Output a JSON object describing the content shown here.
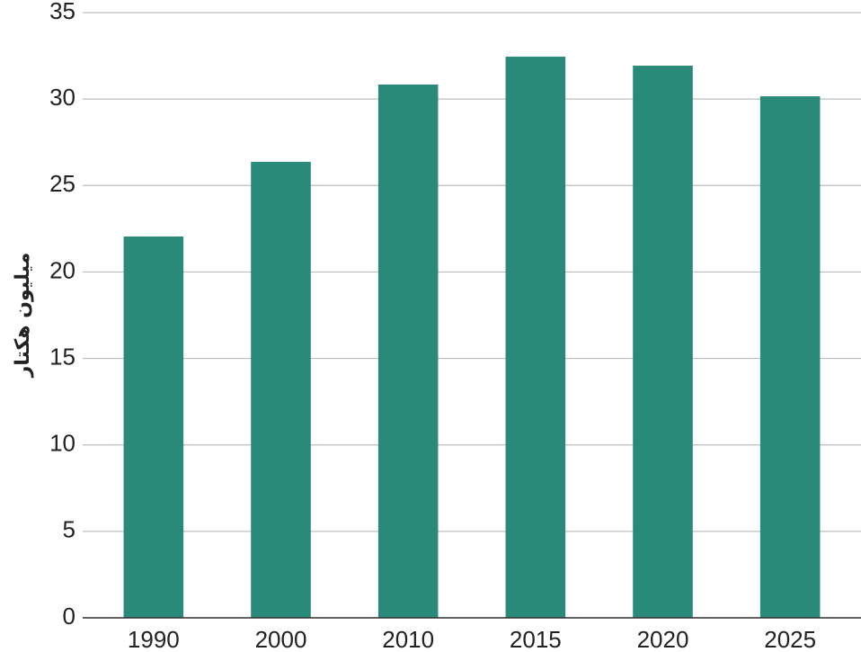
{
  "chart_data": {
    "type": "bar",
    "y_label": "میلیون هکتار",
    "categories": [
      "1990",
      "2000",
      "2010",
      "2015",
      "2020",
      "2025"
    ],
    "values": [
      22.05,
      26.37,
      30.84,
      32.45,
      31.93,
      30.16
    ],
    "color": "#2a8a7a",
    "ylim": [
      0,
      35
    ],
    "yticks": [
      0,
      5,
      10,
      15,
      20,
      25,
      30,
      35
    ],
    "grid": true
  }
}
